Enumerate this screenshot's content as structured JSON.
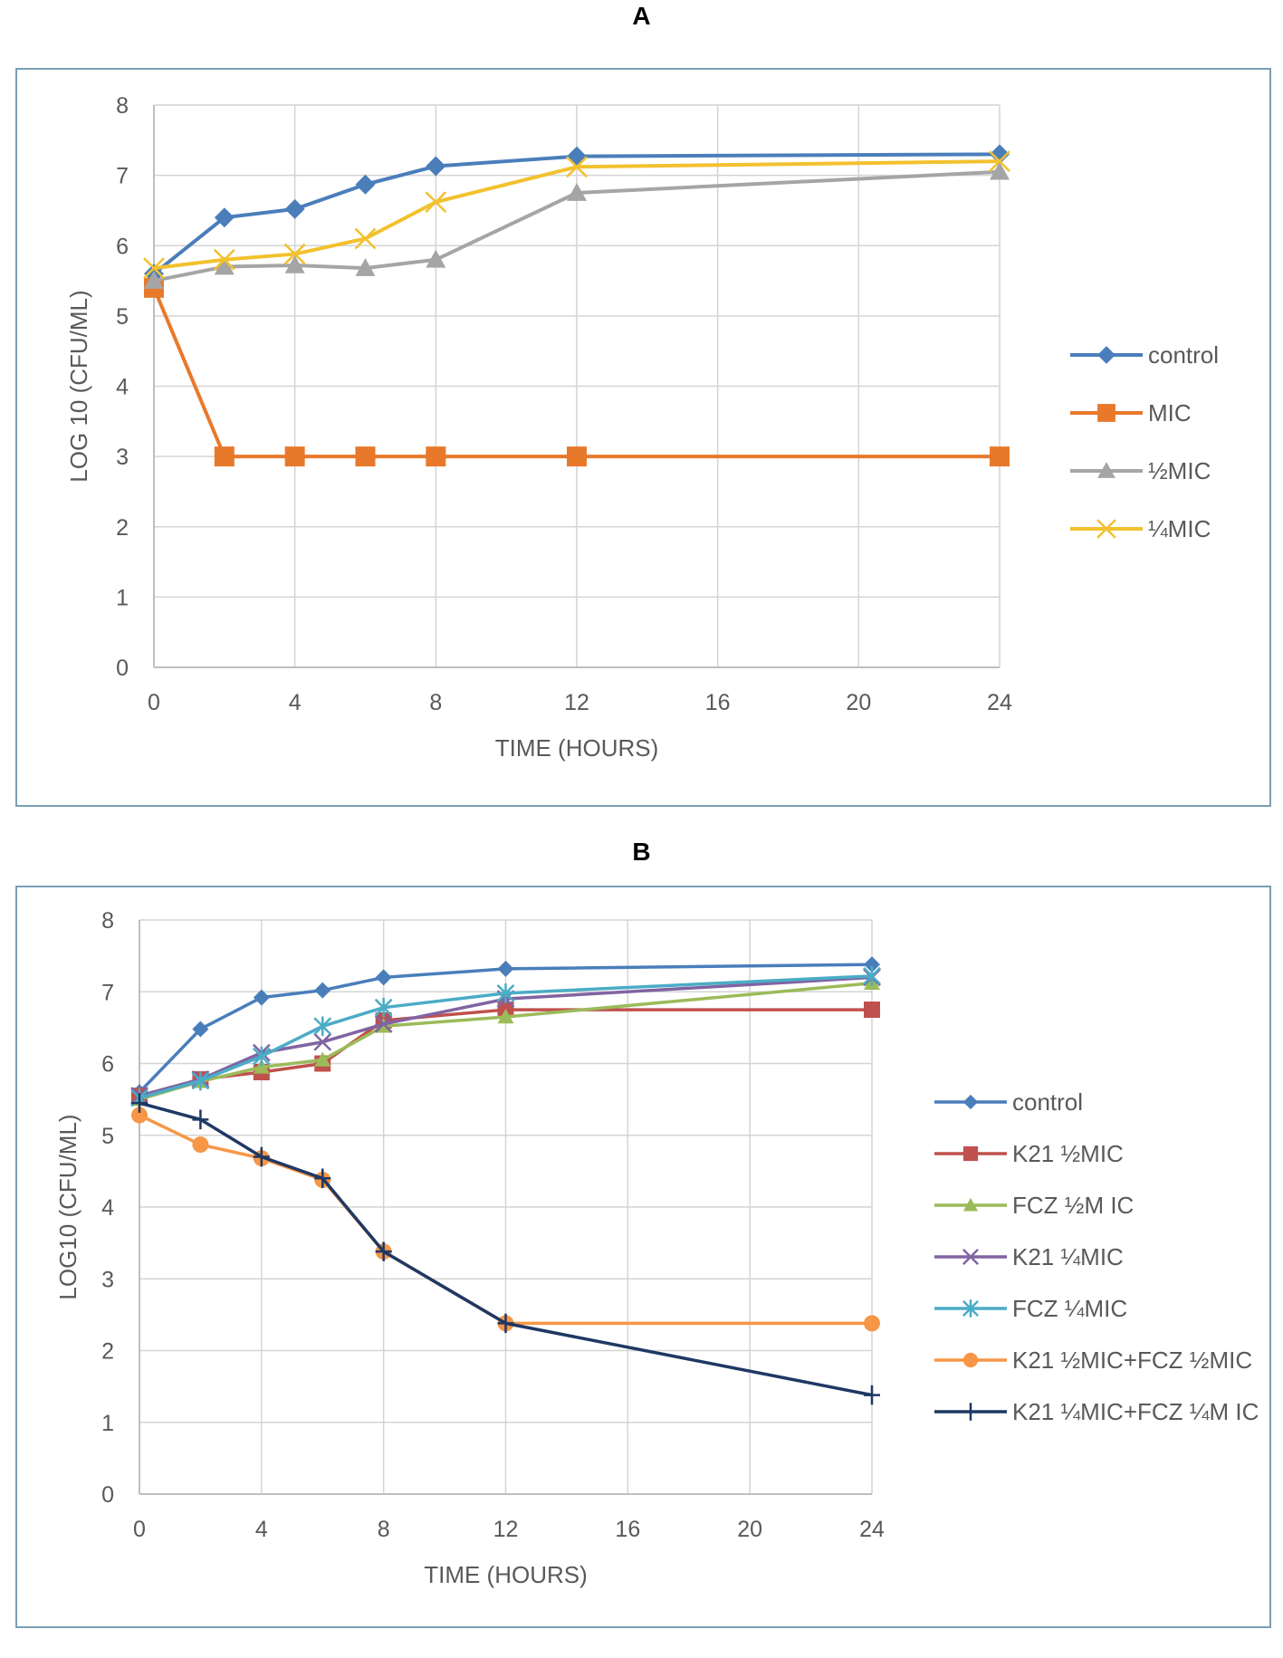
{
  "chart_data": [
    {
      "type": "line",
      "panel": "A",
      "xlabel": "TIME (HOURS)",
      "ylabel": "LOG 10 (CFU/ML)",
      "xlim": [
        0,
        24
      ],
      "ylim": [
        0,
        8
      ],
      "xticks": [
        0,
        4,
        8,
        12,
        16,
        20,
        24
      ],
      "yticks": [
        0,
        1,
        2,
        3,
        4,
        5,
        6,
        7,
        8
      ],
      "grid": true,
      "legend_position": "right",
      "series": [
        {
          "name": "control",
          "color": "#4a7ebb",
          "marker": "diamond",
          "x": [
            0,
            2,
            4,
            6,
            8,
            12,
            24
          ],
          "y": [
            5.6,
            6.4,
            6.52,
            6.87,
            7.13,
            7.27,
            7.3
          ]
        },
        {
          "name": "MIC",
          "color": "#e8792b",
          "marker": "square",
          "x": [
            0,
            2,
            4,
            6,
            8,
            12,
            24
          ],
          "y": [
            5.4,
            3.0,
            3.0,
            3.0,
            3.0,
            3.0,
            3.0
          ]
        },
        {
          "name": "½MIC",
          "color": "#a5a5a5",
          "marker": "triangle",
          "x": [
            0,
            2,
            4,
            6,
            8,
            12,
            24
          ],
          "y": [
            5.5,
            5.7,
            5.72,
            5.68,
            5.8,
            6.75,
            7.05
          ]
        },
        {
          "name": "¼MIC",
          "color": "#f2c12e",
          "marker": "x",
          "x": [
            0,
            2,
            4,
            6,
            8,
            12,
            24
          ],
          "y": [
            5.68,
            5.8,
            5.88,
            6.1,
            6.62,
            7.12,
            7.2
          ]
        }
      ]
    },
    {
      "type": "line",
      "panel": "B",
      "xlabel": "TIME (HOURS)",
      "ylabel": "LOG10 (CFU/ML)",
      "xlim": [
        0,
        24
      ],
      "ylim": [
        0,
        8
      ],
      "xticks": [
        0,
        4,
        8,
        12,
        16,
        20,
        24
      ],
      "yticks": [
        0,
        1,
        2,
        3,
        4,
        5,
        6,
        7,
        8
      ],
      "grid": true,
      "legend_position": "right",
      "series": [
        {
          "name": "control",
          "color": "#4a7ebb",
          "marker": "diamond",
          "x": [
            0,
            2,
            4,
            6,
            8,
            12,
            24
          ],
          "y": [
            5.6,
            6.48,
            6.92,
            7.02,
            7.2,
            7.32,
            7.38
          ]
        },
        {
          "name": "K21 ½MIC",
          "color": "#c0504d",
          "marker": "square",
          "x": [
            0,
            2,
            4,
            6,
            8,
            12,
            24
          ],
          "y": [
            5.55,
            5.78,
            5.88,
            6.0,
            6.6,
            6.75,
            6.75
          ]
        },
        {
          "name": "FCZ ½M IC",
          "color": "#9bbb59",
          "marker": "triangle",
          "x": [
            0,
            2,
            4,
            6,
            8,
            12,
            24
          ],
          "y": [
            5.5,
            5.75,
            5.95,
            6.05,
            6.52,
            6.65,
            7.12
          ]
        },
        {
          "name": "K21 ¼MIC",
          "color": "#8064a2",
          "marker": "x",
          "x": [
            0,
            2,
            4,
            6,
            8,
            12,
            24
          ],
          "y": [
            5.55,
            5.78,
            6.15,
            6.3,
            6.55,
            6.9,
            7.2
          ]
        },
        {
          "name": "FCZ ¼MIC",
          "color": "#4bacc6",
          "marker": "star",
          "x": [
            0,
            2,
            4,
            6,
            8,
            12,
            24
          ],
          "y": [
            5.52,
            5.76,
            6.1,
            6.52,
            6.78,
            6.98,
            7.22
          ]
        },
        {
          "name": "K21 ½MIC+FCZ ½MIC",
          "color": "#f79646",
          "marker": "circle",
          "x": [
            0,
            2,
            4,
            6,
            8,
            12,
            24
          ],
          "y": [
            5.28,
            4.87,
            4.68,
            4.38,
            3.38,
            2.38,
            2.38
          ]
        },
        {
          "name": "K21 ¼MIC+FCZ ¼M IC",
          "color": "#1f3864",
          "marker": "plus",
          "x": [
            0,
            2,
            4,
            6,
            8,
            12,
            24
          ],
          "y": [
            5.45,
            5.22,
            4.7,
            4.4,
            3.38,
            2.38,
            1.38
          ]
        }
      ]
    }
  ]
}
